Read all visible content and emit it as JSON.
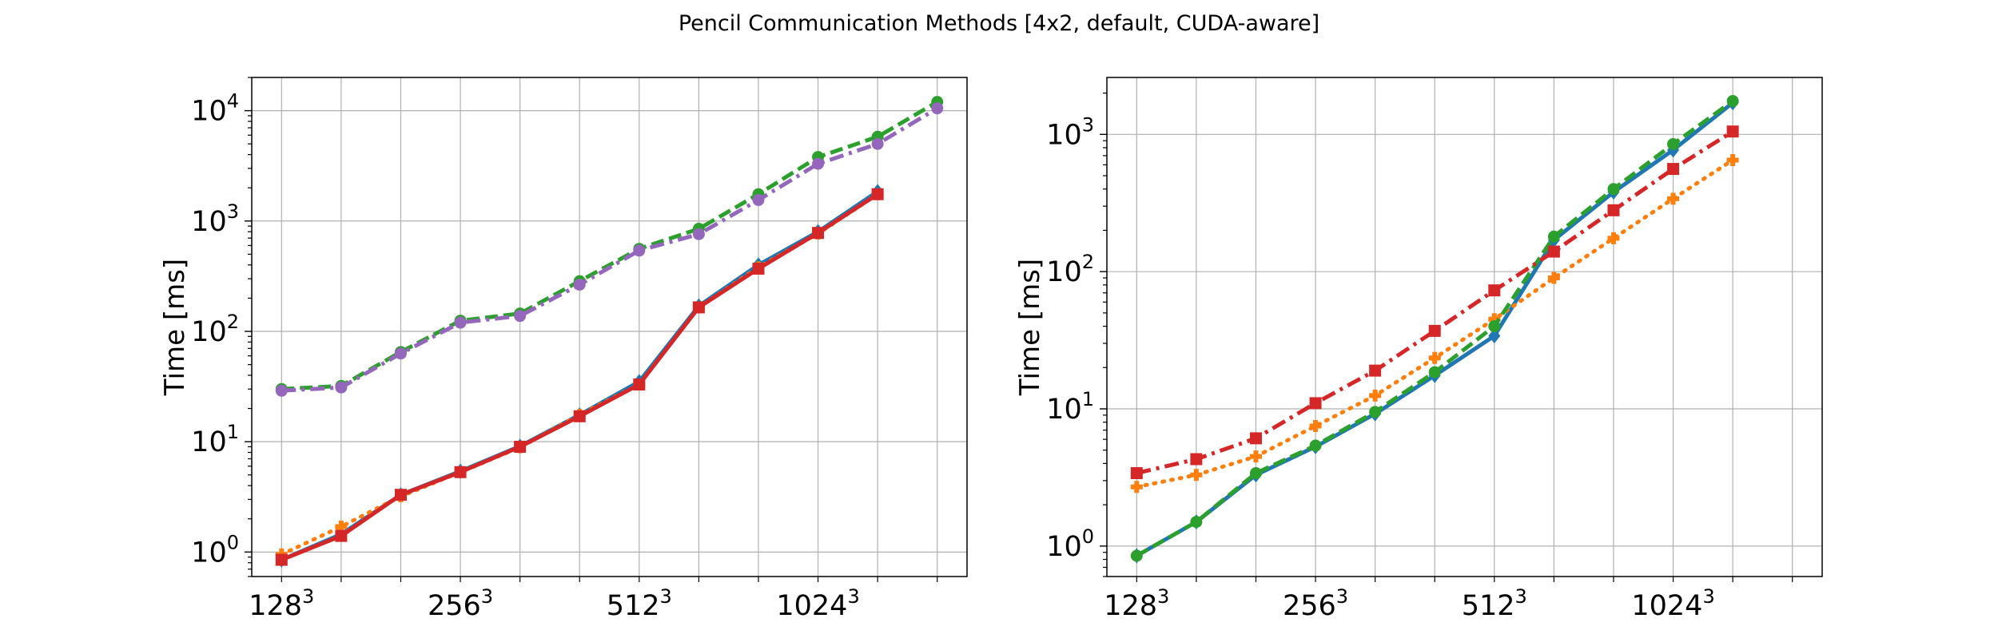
{
  "figure": {
    "title": "Pencil Communication Methods [4x2, default, CUDA-aware]"
  },
  "chart_data": [
    {
      "type": "line",
      "title": "",
      "xlabel": "",
      "ylabel": "Time [ms]",
      "yscale": "log",
      "ylim": [
        0.6,
        20000
      ],
      "grid": true,
      "x_tick_labels": [
        {
          "base": "128",
          "exp": "3"
        },
        {
          "base": "256",
          "exp": "3"
        },
        {
          "base": "512",
          "exp": "3"
        },
        {
          "base": "1024",
          "exp": "3"
        }
      ],
      "y_tick_labels": [
        {
          "base": "10",
          "exp": "0"
        },
        {
          "base": "10",
          "exp": "1"
        },
        {
          "base": "10",
          "exp": "2"
        },
        {
          "base": "10",
          "exp": "3"
        },
        {
          "base": "10",
          "exp": "4"
        }
      ],
      "series": [
        {
          "color": "#1f77b4",
          "linestyle": "solid",
          "marker": "diamond",
          "values": [
            0.85,
            1.45,
            3.3,
            5.4,
            9.1,
            17.5,
            35,
            170,
            400,
            800,
            1850
          ]
        },
        {
          "color": "#ff7f0e",
          "linestyle": "dotted",
          "marker": "plus",
          "values": [
            0.95,
            1.7,
            3.2,
            5.3,
            8.9,
            17.5,
            33,
            165,
            380,
            770,
            1750
          ]
        },
        {
          "color": "#2ca02c",
          "linestyle": "dashed",
          "marker": "circle",
          "values": [
            30,
            32,
            65,
            125,
            145,
            285,
            560,
            850,
            1750,
            3800,
            5800,
            12000
          ]
        },
        {
          "color": "#d62728",
          "linestyle": "solid",
          "marker": "square",
          "values": [
            0.85,
            1.4,
            3.3,
            5.3,
            9.0,
            17.0,
            33,
            165,
            370,
            780,
            1750
          ]
        },
        {
          "color": "#9467bd",
          "linestyle": "dashdot",
          "marker": "circle",
          "values": [
            29,
            31,
            63,
            120,
            138,
            265,
            540,
            760,
            1550,
            3300,
            5000,
            10500
          ]
        }
      ]
    },
    {
      "type": "line",
      "title": "",
      "xlabel": "",
      "ylabel": "Time [ms]",
      "yscale": "log",
      "ylim": [
        0.6,
        2600
      ],
      "grid": true,
      "x_tick_labels": [
        {
          "base": "128",
          "exp": "3"
        },
        {
          "base": "256",
          "exp": "3"
        },
        {
          "base": "512",
          "exp": "3"
        },
        {
          "base": "1024",
          "exp": "3"
        }
      ],
      "y_tick_labels": [
        {
          "base": "10",
          "exp": "0"
        },
        {
          "base": "10",
          "exp": "1"
        },
        {
          "base": "10",
          "exp": "2"
        },
        {
          "base": "10",
          "exp": "3"
        }
      ],
      "series": [
        {
          "color": "#1f77b4",
          "linestyle": "solid",
          "marker": "diamond",
          "values": [
            0.85,
            1.5,
            3.3,
            5.3,
            9.2,
            17.5,
            34,
            170,
            380,
            770,
            1700
          ]
        },
        {
          "color": "#ff7f0e",
          "linestyle": "dotted",
          "marker": "plus",
          "values": [
            2.7,
            3.3,
            4.5,
            7.5,
            12.5,
            23.5,
            45,
            90,
            175,
            340,
            650
          ]
        },
        {
          "color": "#2ca02c",
          "linestyle": "dashed",
          "marker": "circle",
          "values": [
            0.85,
            1.5,
            3.4,
            5.4,
            9.5,
            18.5,
            40,
            180,
            400,
            850,
            1750
          ]
        },
        {
          "color": "#d62728",
          "linestyle": "dashdot",
          "marker": "square",
          "values": [
            3.4,
            4.3,
            6.1,
            11,
            19,
            37,
            73,
            140,
            280,
            560,
            1050
          ]
        }
      ]
    }
  ]
}
